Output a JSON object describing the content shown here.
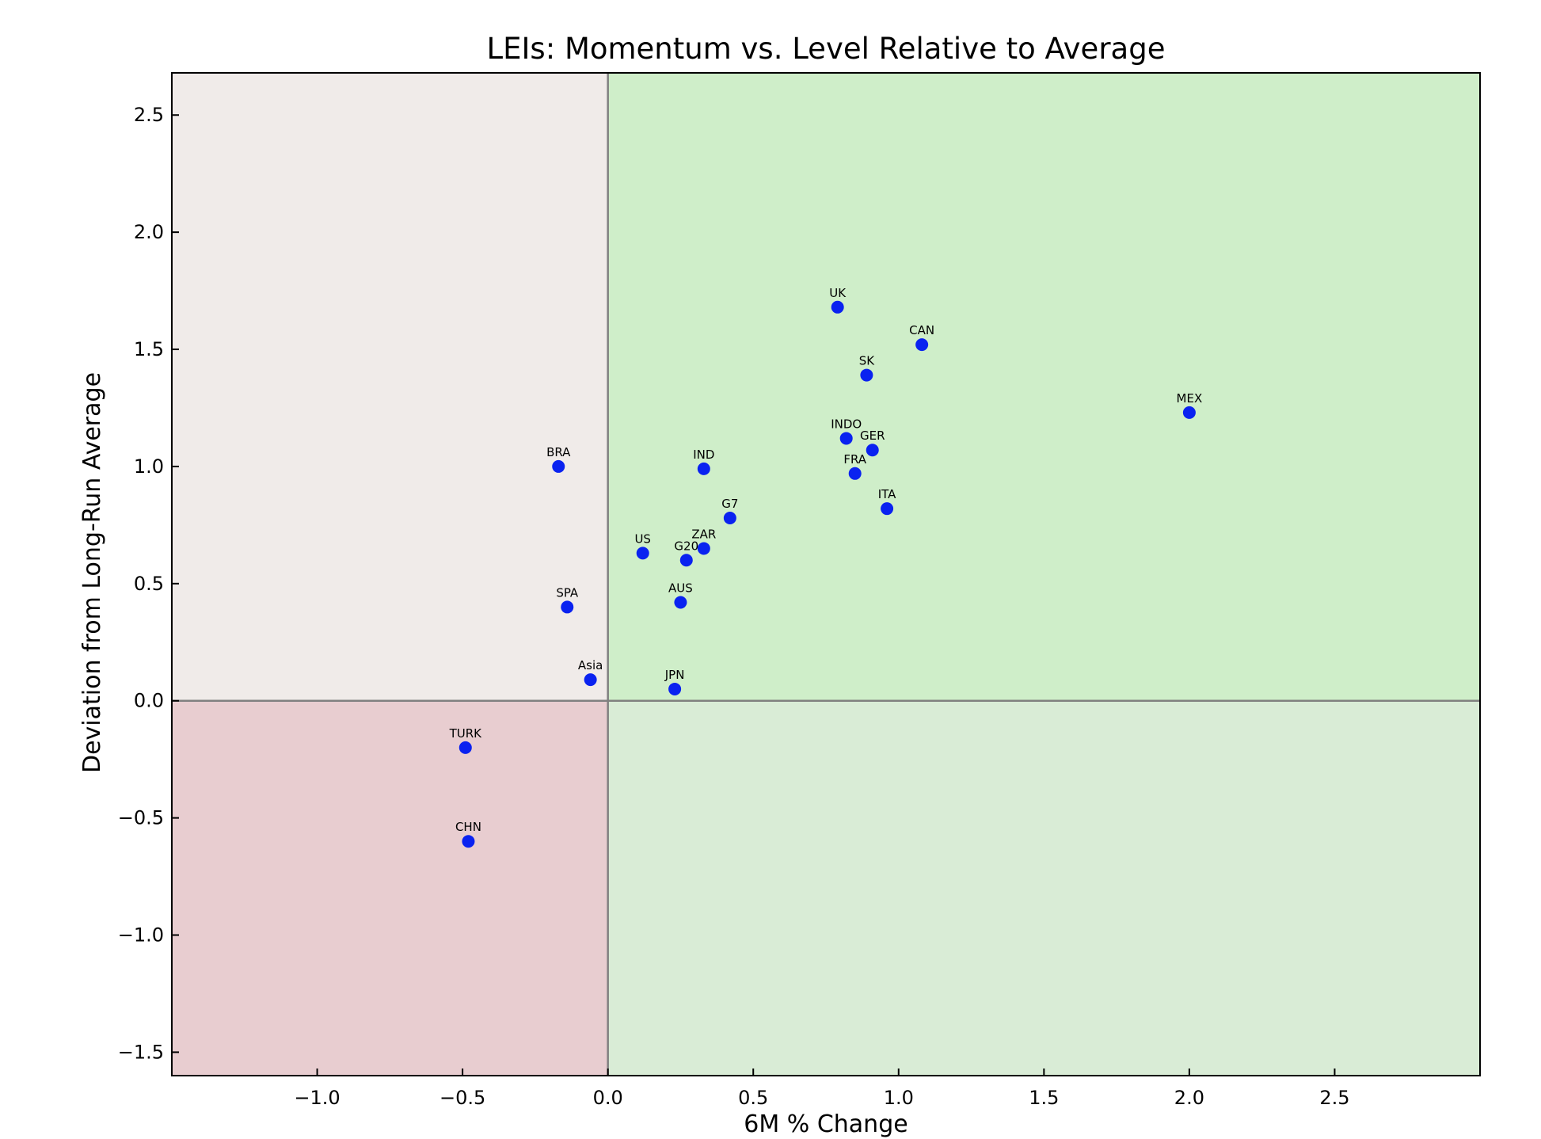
{
  "chart_data": {
    "type": "scatter",
    "title": "LEIs: Momentum vs. Level Relative to Average",
    "xlabel": "6M % Change",
    "ylabel": "Deviation from Long-Run Average",
    "xlim": [
      -1.5,
      3.0
    ],
    "ylim": [
      -1.6,
      2.68
    ],
    "xticks": [
      -1.0,
      -0.5,
      0.0,
      0.5,
      1.0,
      1.5,
      2.0,
      2.5
    ],
    "xtick_labels": [
      "−1.0",
      "−0.5",
      "0.0",
      "0.5",
      "1.0",
      "1.5",
      "2.0",
      "2.5"
    ],
    "yticks": [
      -1.5,
      -1.0,
      -0.5,
      0.0,
      0.5,
      1.0,
      1.5,
      2.0,
      2.5
    ],
    "ytick_labels": [
      "−1.5",
      "−1.0",
      "−0.5",
      "0.0",
      "0.5",
      "1.0",
      "1.5",
      "2.0",
      "2.5"
    ],
    "grid": false,
    "quadrant_colors": {
      "top_left": "#f0ebe9",
      "top_right": "#cfeec9",
      "bottom_left": "#e8cdd0",
      "bottom_right": "#d9ecd6"
    },
    "reference_line_color": "#808080",
    "marker_color": "#0a22f0",
    "points": [
      {
        "label": "UK",
        "x": 0.79,
        "y": 1.68
      },
      {
        "label": "CAN",
        "x": 1.08,
        "y": 1.52
      },
      {
        "label": "SK",
        "x": 0.89,
        "y": 1.39
      },
      {
        "label": "MEX",
        "x": 2.0,
        "y": 1.23
      },
      {
        "label": "INDO",
        "x": 0.82,
        "y": 1.12
      },
      {
        "label": "GER",
        "x": 0.91,
        "y": 1.07
      },
      {
        "label": "FRA",
        "x": 0.85,
        "y": 0.97
      },
      {
        "label": "ITA",
        "x": 0.96,
        "y": 0.82
      },
      {
        "label": "BRA",
        "x": -0.17,
        "y": 1.0
      },
      {
        "label": "IND",
        "x": 0.33,
        "y": 0.99
      },
      {
        "label": "G7",
        "x": 0.42,
        "y": 0.78
      },
      {
        "label": "ZAR",
        "x": 0.33,
        "y": 0.65
      },
      {
        "label": "US",
        "x": 0.12,
        "y": 0.63
      },
      {
        "label": "G20",
        "x": 0.27,
        "y": 0.6
      },
      {
        "label": "AUS",
        "x": 0.25,
        "y": 0.42
      },
      {
        "label": "SPA",
        "x": -0.14,
        "y": 0.4
      },
      {
        "label": "Asia",
        "x": -0.06,
        "y": 0.09
      },
      {
        "label": "JPN",
        "x": 0.23,
        "y": 0.05
      },
      {
        "label": "TURK",
        "x": -0.49,
        "y": -0.2
      },
      {
        "label": "CHN",
        "x": -0.48,
        "y": -0.6
      }
    ]
  }
}
